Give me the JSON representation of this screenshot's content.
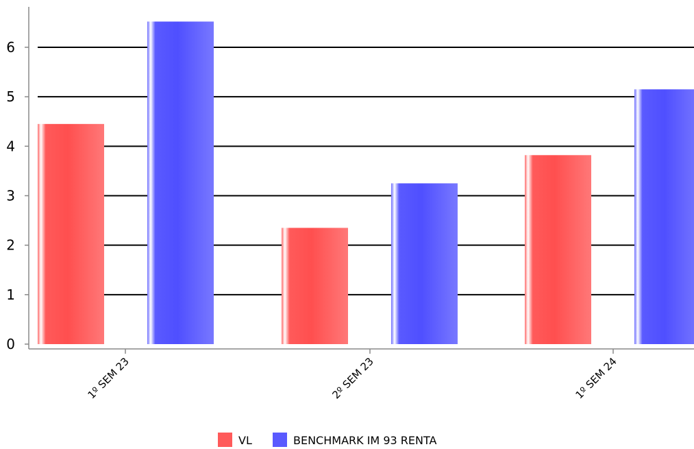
{
  "chart_data": {
    "type": "bar",
    "categories": [
      "1º SEM 23",
      "2º SEM 23",
      "1º SEM 24"
    ],
    "series": [
      {
        "name": "VL",
        "values": [
          4.45,
          2.35,
          3.82
        ],
        "color": "#ff5a5a"
      },
      {
        "name": "BENCHMARK IM 93 RENTA",
        "values": [
          6.52,
          3.25,
          5.15
        ],
        "color": "#5a5aff"
      }
    ],
    "yticks": [
      0,
      1,
      2,
      3,
      4,
      5,
      6
    ],
    "ylim": [
      0,
      6.8
    ],
    "grid": true,
    "legend": "bottom-center",
    "title": "",
    "xlabel": "",
    "ylabel": ""
  }
}
